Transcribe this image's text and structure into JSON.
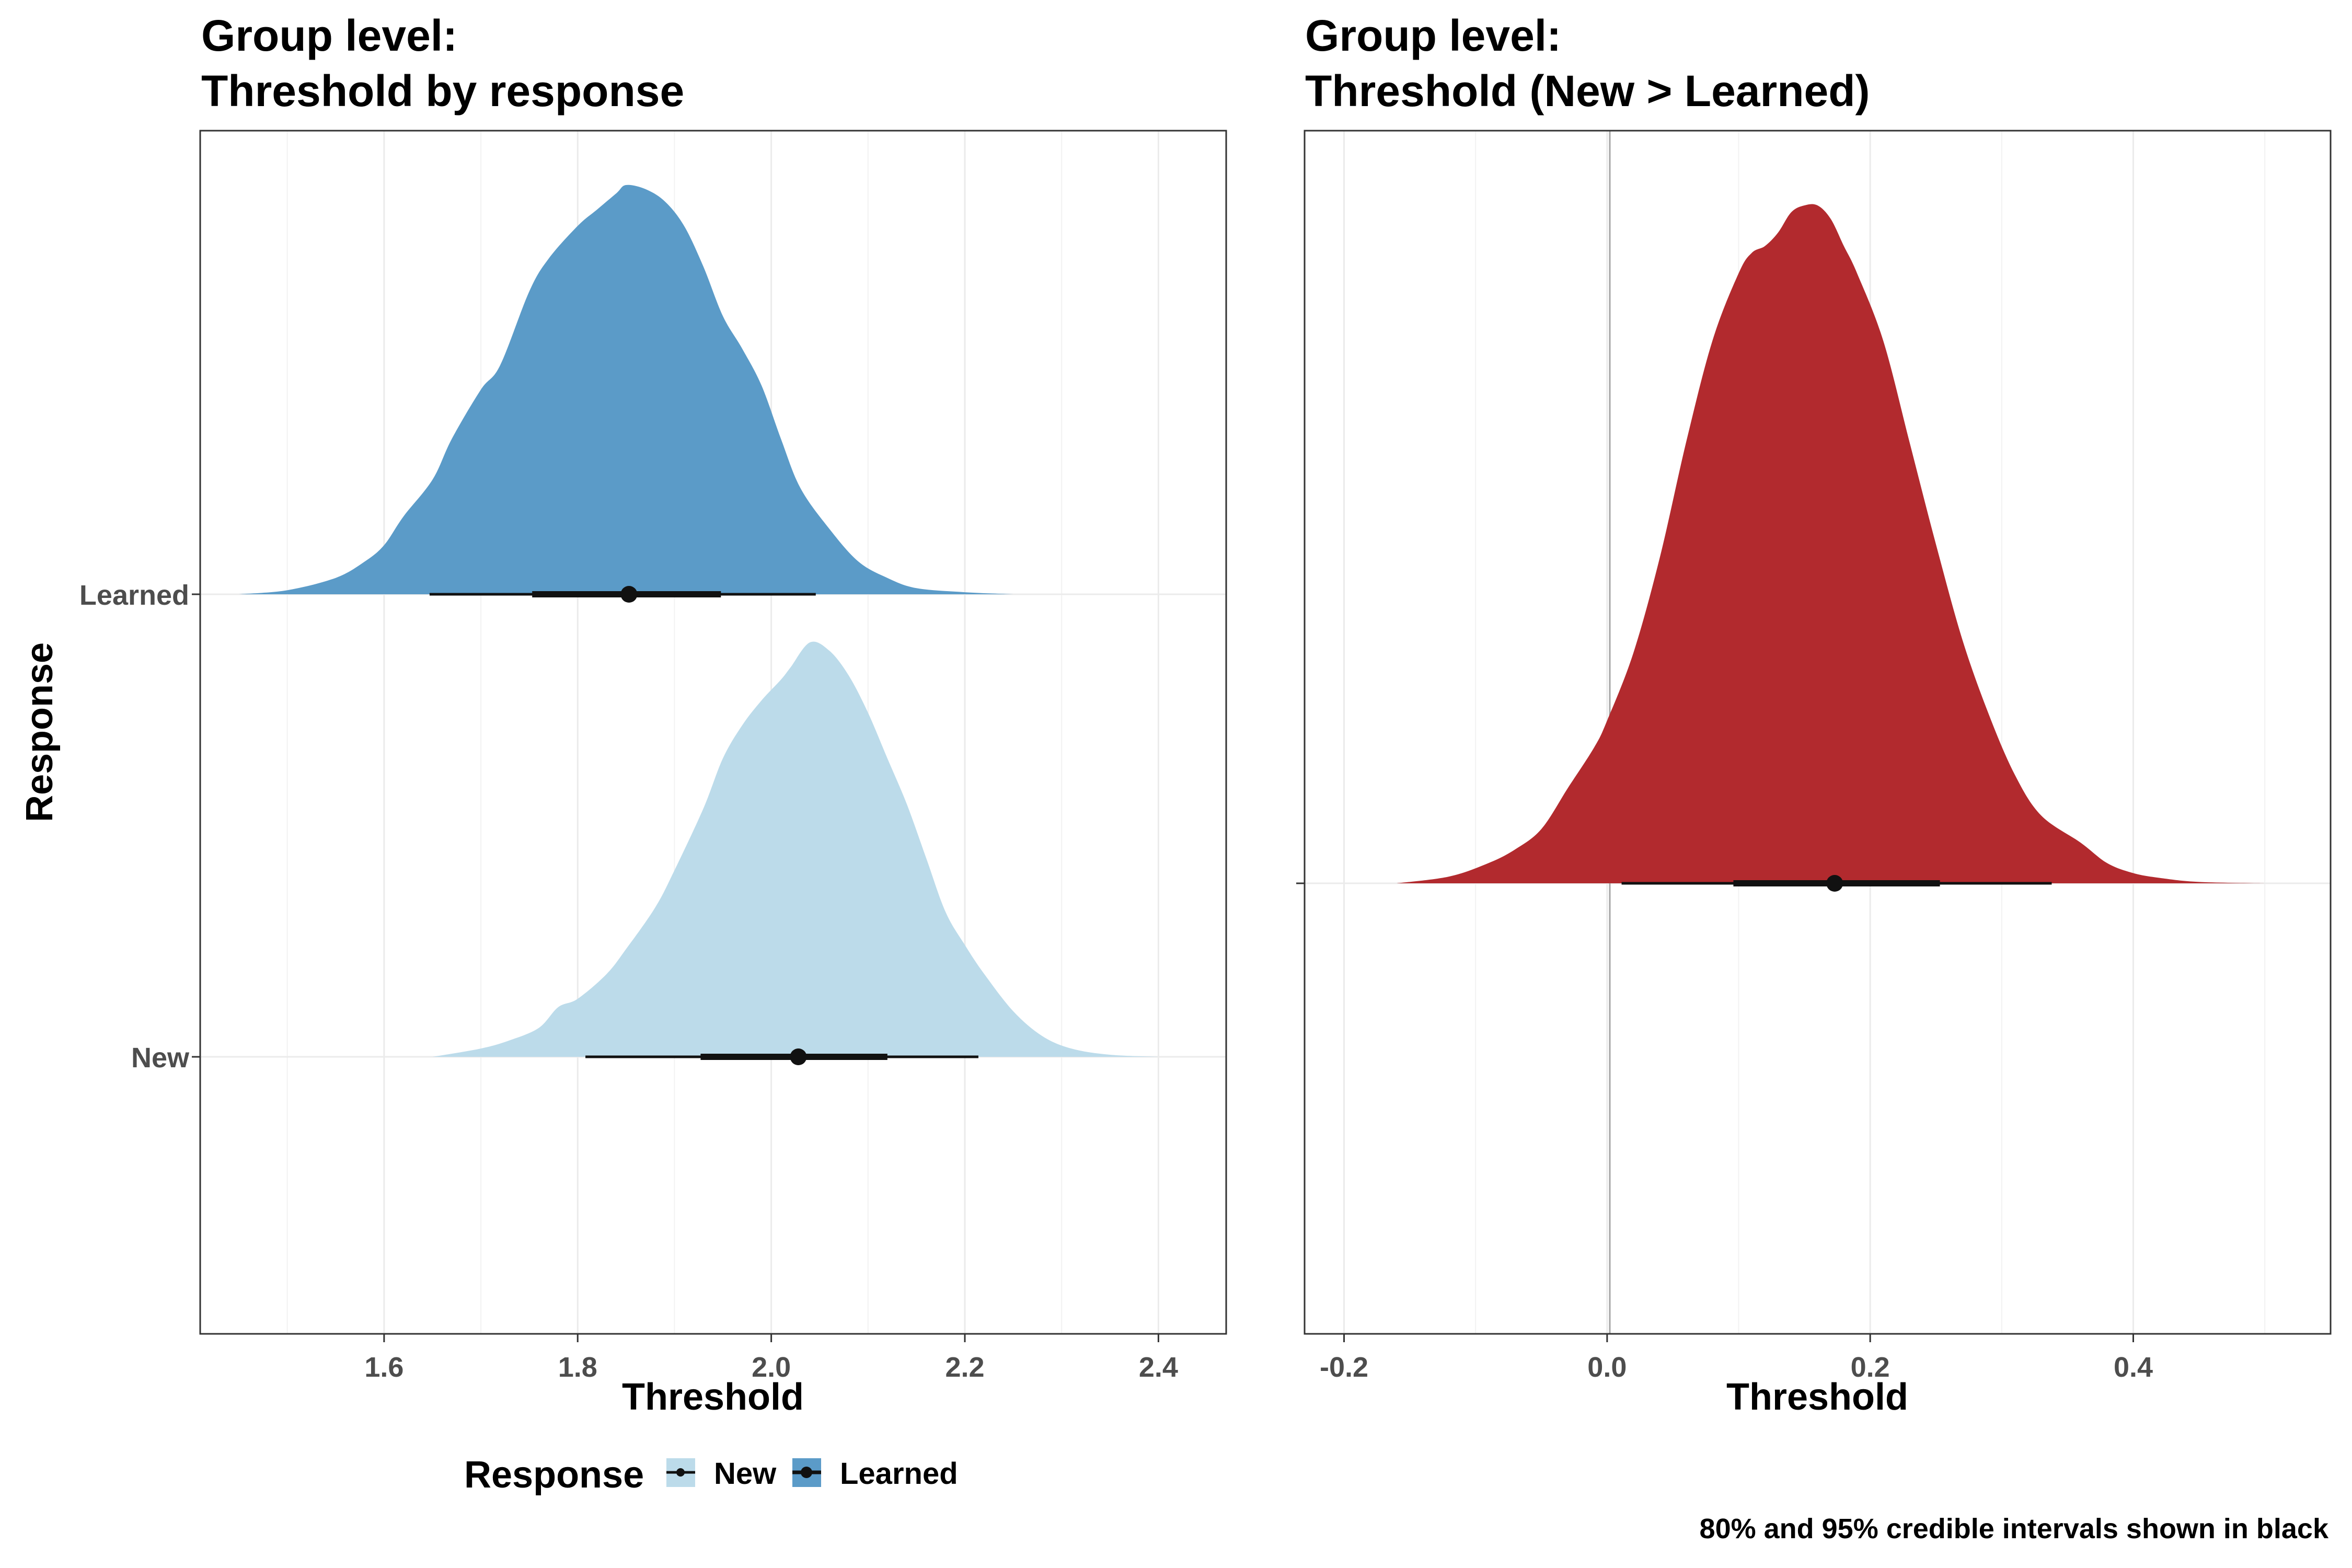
{
  "colors": {
    "learned_fill": "#5b9bc8",
    "new_fill": "#bcdbea",
    "diff_fill": "#b22a2e",
    "interval": "#111111",
    "grid": "#ebebeb",
    "zero_line": "#a6a6a6"
  },
  "caption": "80% and 95% credible intervals shown in black",
  "legend": {
    "title": "Response",
    "items": [
      {
        "label": "New",
        "color": "#bcdbea"
      },
      {
        "label": "Learned",
        "color": "#5b9bc8"
      }
    ]
  },
  "chart_data": [
    {
      "type": "density",
      "title": "Group level:",
      "subtitle": "Threshold by response",
      "xlabel": "Threshold",
      "ylabel": "Response",
      "xlim": [
        1.41,
        2.47
      ],
      "xticks": [
        "1.6",
        "1.8",
        "2.0",
        "2.2",
        "2.4"
      ],
      "xtick_values": [
        1.6,
        1.8,
        2.0,
        2.2,
        2.4
      ],
      "yticks": [
        "Learned",
        "New"
      ],
      "grid": true,
      "series": [
        {
          "name": "Learned",
          "color": "#5b9bc8",
          "median": 1.853,
          "ci80": [
            1.753,
            1.948
          ],
          "ci95": [
            1.647,
            2.046
          ],
          "density_x": [
            1.45,
            1.5,
            1.55,
            1.58,
            1.6,
            1.62,
            1.65,
            1.67,
            1.7,
            1.72,
            1.75,
            1.77,
            1.8,
            1.82,
            1.84,
            1.85,
            1.87,
            1.89,
            1.91,
            1.93,
            1.95,
            1.97,
            1.99,
            2.01,
            2.03,
            2.06,
            2.09,
            2.12,
            2.15,
            2.2,
            2.25
          ],
          "density_y": [
            0.0,
            0.01,
            0.04,
            0.08,
            0.12,
            0.19,
            0.28,
            0.38,
            0.5,
            0.56,
            0.74,
            0.82,
            0.9,
            0.94,
            0.98,
            1.0,
            0.99,
            0.96,
            0.9,
            0.8,
            0.68,
            0.6,
            0.51,
            0.38,
            0.26,
            0.16,
            0.08,
            0.04,
            0.015,
            0.005,
            0.0
          ]
        },
        {
          "name": "New",
          "color": "#bcdbea",
          "median": 2.028,
          "ci80": [
            1.927,
            2.12
          ],
          "ci95": [
            1.808,
            2.214
          ],
          "density_x": [
            1.65,
            1.7,
            1.73,
            1.76,
            1.78,
            1.8,
            1.83,
            1.85,
            1.88,
            1.9,
            1.93,
            1.95,
            1.97,
            1.99,
            2.01,
            2.02,
            2.04,
            2.06,
            2.08,
            2.1,
            2.12,
            2.14,
            2.16,
            2.18,
            2.2,
            2.22,
            2.25,
            2.28,
            2.31,
            2.35,
            2.4
          ],
          "density_y": [
            0.0,
            0.02,
            0.04,
            0.07,
            0.12,
            0.14,
            0.2,
            0.26,
            0.36,
            0.45,
            0.6,
            0.72,
            0.8,
            0.86,
            0.91,
            0.94,
            1.0,
            0.98,
            0.92,
            0.83,
            0.72,
            0.61,
            0.48,
            0.35,
            0.27,
            0.2,
            0.11,
            0.05,
            0.02,
            0.005,
            0.0
          ]
        }
      ]
    },
    {
      "type": "density",
      "title": "Group level:",
      "subtitle": "Threshold (New > Learned)",
      "xlabel": "Threshold",
      "ylabel": "",
      "xlim": [
        -0.23,
        0.55
      ],
      "xticks": [
        "-0.2",
        "0.0",
        "0.2",
        "0.4"
      ],
      "xtick_values": [
        -0.2,
        0.0,
        0.2,
        0.4
      ],
      "reference_line_x": 0.0,
      "grid": true,
      "series": [
        {
          "name": "New > Learned",
          "color": "#b22a2e",
          "median": 0.173,
          "ci80": [
            0.096,
            0.253
          ],
          "ci95": [
            0.011,
            0.338
          ],
          "density_x": [
            -0.16,
            -0.12,
            -0.09,
            -0.07,
            -0.05,
            -0.03,
            -0.01,
            0.0,
            0.02,
            0.04,
            0.06,
            0.08,
            0.1,
            0.11,
            0.12,
            0.13,
            0.14,
            0.15,
            0.16,
            0.17,
            0.18,
            0.19,
            0.21,
            0.23,
            0.25,
            0.27,
            0.29,
            0.31,
            0.33,
            0.36,
            0.38,
            0.4,
            0.42,
            0.45,
            0.5
          ],
          "density_y": [
            0.0,
            0.01,
            0.03,
            0.05,
            0.08,
            0.14,
            0.2,
            0.24,
            0.34,
            0.48,
            0.65,
            0.8,
            0.9,
            0.93,
            0.94,
            0.96,
            0.99,
            1.0,
            1.0,
            0.98,
            0.94,
            0.9,
            0.8,
            0.65,
            0.5,
            0.36,
            0.25,
            0.16,
            0.1,
            0.06,
            0.03,
            0.015,
            0.008,
            0.002,
            0.0
          ]
        }
      ]
    }
  ]
}
